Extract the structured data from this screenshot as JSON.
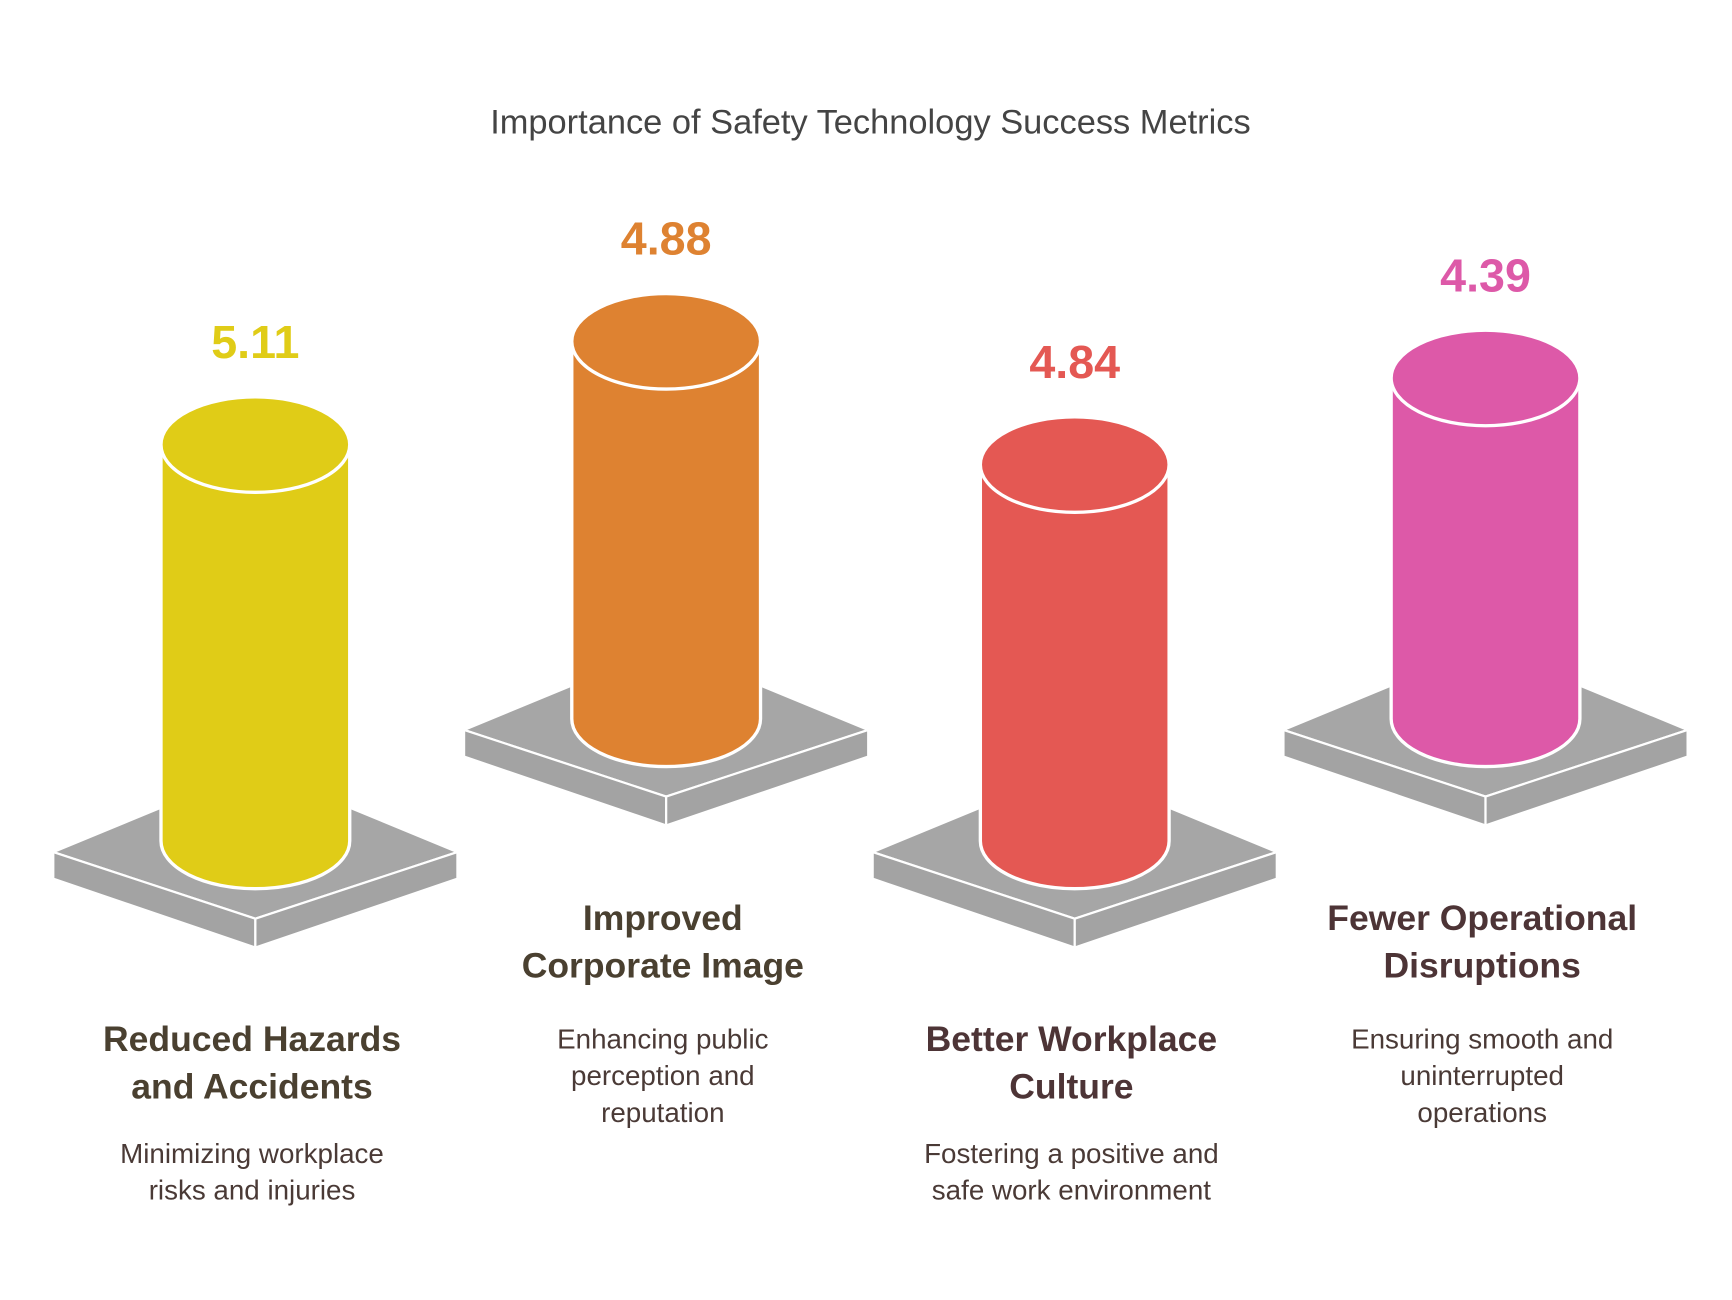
{
  "chart_data": {
    "type": "bar",
    "title": "Importance of Safety Technology Success Metrics",
    "xlabel": "",
    "ylabel": "",
    "categories": [
      "Reduced Hazards and Accidents",
      "Improved Corporate Image",
      "Better Workplace Culture",
      "Fewer Operational Disruptions"
    ],
    "values": [
      5.11,
      4.88,
      4.84,
      4.39
    ],
    "value_labels": [
      "5.11",
      "4.88",
      "4.84",
      "4.39"
    ],
    "items": [
      {
        "heading": [
          "Reduced Hazards",
          "and Accidents"
        ],
        "description": [
          "Minimizing workplace",
          "risks and injuries"
        ],
        "color": "#e0cc17",
        "heading_color": "#4a4030"
      },
      {
        "heading": [
          "Improved",
          "Corporate Image"
        ],
        "description": [
          "Enhancing public",
          "perception and",
          "reputation"
        ],
        "color": "#de8231",
        "heading_color": "#4a4030"
      },
      {
        "heading": [
          "Better Workplace",
          "Culture"
        ],
        "description": [
          "Fostering a positive and",
          "safe work environment"
        ],
        "color": "#e45853",
        "heading_color": "#4d3436"
      },
      {
        "heading": [
          "Fewer Operational",
          "Disruptions"
        ],
        "description": [
          "Ensuring smooth and",
          "uninterrupted",
          "operations"
        ],
        "color": "#dd59a8",
        "heading_color": "#4d3436"
      }
    ]
  }
}
